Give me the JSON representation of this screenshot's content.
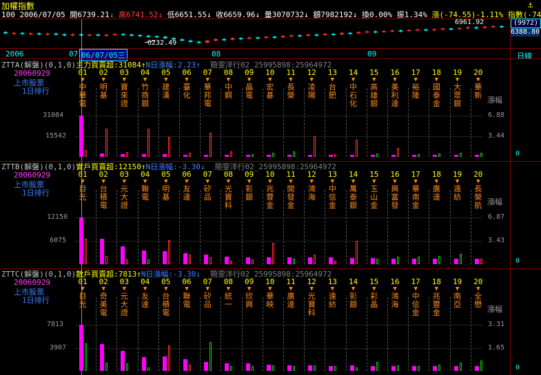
{
  "window": {
    "title": "加權指數",
    "close_glyph": "⚓"
  },
  "summary": {
    "code": "100",
    "date": "2006/07/05",
    "open_label": "開",
    "open": "6739.21",
    "open_arrow": "↓",
    "high_label": "高",
    "high": "6741.52",
    "high_arrow": "↓",
    "low_label": "低",
    "low": "6651.55",
    "low_arrow": "↓",
    "close_label": "收",
    "close": "6659.96",
    "close_arrow": "↓",
    "vol_label": "量",
    "vol": "3070732",
    "vol_arrow": "↓",
    "amount_label": "額",
    "amount": "7982192",
    "amount_arrow": "↓",
    "turn_label": "換",
    "turn": "0.00%",
    "amp_label": "振",
    "amp": "1.34%",
    "chg_label": "漲",
    "chg": "(-74.55)-1.11%",
    "idx_label": "指數",
    "idx": "(-74."
  },
  "mini_chart": {
    "hi_label": "6961.92",
    "lo_label": "6232.49",
    "scale_top": "(9972)",
    "scale_val": "6388.80",
    "candles": [
      {
        "o": 0.55,
        "c": 0.5
      },
      {
        "o": 0.5,
        "c": 0.52
      },
      {
        "o": 0.52,
        "c": 0.48
      },
      {
        "o": 0.48,
        "c": 0.5
      },
      {
        "o": 0.5,
        "c": 0.47
      },
      {
        "o": 0.47,
        "c": 0.49
      },
      {
        "o": 0.49,
        "c": 0.46
      },
      {
        "o": 0.46,
        "c": 0.44
      },
      {
        "o": 0.44,
        "c": 0.46
      },
      {
        "o": 0.46,
        "c": 0.43
      },
      {
        "o": 0.43,
        "c": 0.45
      },
      {
        "o": 0.45,
        "c": 0.42
      },
      {
        "o": 0.42,
        "c": 0.44
      },
      {
        "o": 0.44,
        "c": 0.47
      },
      {
        "o": 0.47,
        "c": 0.45
      },
      {
        "o": 0.45,
        "c": 0.43
      },
      {
        "o": 0.43,
        "c": 0.4
      },
      {
        "o": 0.4,
        "c": 0.38
      },
      {
        "o": 0.38,
        "c": 0.36
      },
      {
        "o": 0.36,
        "c": 0.3
      },
      {
        "o": 0.3,
        "c": 0.25
      },
      {
        "o": 0.25,
        "c": 0.2
      },
      {
        "o": 0.2,
        "c": 0.15
      },
      {
        "o": 0.15,
        "c": 0.12
      },
      {
        "o": 0.12,
        "c": 0.2
      },
      {
        "o": 0.2,
        "c": 0.26
      },
      {
        "o": 0.26,
        "c": 0.24
      },
      {
        "o": 0.24,
        "c": 0.3
      },
      {
        "o": 0.3,
        "c": 0.28
      },
      {
        "o": 0.28,
        "c": 0.33
      },
      {
        "o": 0.33,
        "c": 0.31
      },
      {
        "o": 0.31,
        "c": 0.36
      },
      {
        "o": 0.36,
        "c": 0.34
      },
      {
        "o": 0.34,
        "c": 0.39
      },
      {
        "o": 0.39,
        "c": 0.42
      },
      {
        "o": 0.42,
        "c": 0.4
      },
      {
        "o": 0.4,
        "c": 0.45
      },
      {
        "o": 0.45,
        "c": 0.43
      },
      {
        "o": 0.43,
        "c": 0.48
      },
      {
        "o": 0.48,
        "c": 0.46
      },
      {
        "o": 0.46,
        "c": 0.52
      },
      {
        "o": 0.52,
        "c": 0.5
      },
      {
        "o": 0.5,
        "c": 0.55
      },
      {
        "o": 0.55,
        "c": 0.58
      },
      {
        "o": 0.58,
        "c": 0.56
      },
      {
        "o": 0.56,
        "c": 0.6
      },
      {
        "o": 0.6,
        "c": 0.62
      },
      {
        "o": 0.62,
        "c": 0.6
      },
      {
        "o": 0.6,
        "c": 0.64
      },
      {
        "o": 0.64,
        "c": 0.66
      },
      {
        "o": 0.66,
        "c": 0.63
      },
      {
        "o": 0.63,
        "c": 0.67
      },
      {
        "o": 0.67,
        "c": 0.7
      },
      {
        "o": 0.7,
        "c": 0.68
      },
      {
        "o": 0.68,
        "c": 0.72
      },
      {
        "o": 0.72,
        "c": 0.75
      },
      {
        "o": 0.75,
        "c": 0.73
      },
      {
        "o": 0.73,
        "c": 0.78
      },
      {
        "o": 0.78,
        "c": 0.8
      },
      {
        "o": 0.8,
        "c": 0.77
      }
    ]
  },
  "timeline": {
    "year": "2006",
    "m1": "07",
    "cursor_date": "06/07/05",
    "cursor_weekday": "三",
    "m2": "08",
    "m3": "09",
    "mode": "日線"
  },
  "panels": [
    {
      "id": "ZTTA",
      "prefix": "ZTTA(解盤)(0,1,0)",
      "metric_label": "主力買賣超:",
      "metric_value": "31084",
      "metric_arrow": "↑",
      "nday_label": "N日漲幅:",
      "nday_value": "2.23",
      "nday_arrow": "↑",
      "source": "簡雯洋行02_25995898:25964972",
      "date": "20060929",
      "l2": "上市股票",
      "l3": "1日排行",
      "ymax": "31084",
      "ymid": "15542",
      "rmax": "6.88",
      "rmid": "3.44",
      "rzero": "0",
      "rtitle": "漲幅",
      "stocks": [
        "中華電",
        "明基",
        "寶來證",
        "竹商銀",
        "建漢",
        "臺化",
        "華邦電",
        "中鋼",
        "晶電",
        "宏碁",
        "長榮",
        "凌陽",
        "台肥",
        "中石化",
        "高雄銀",
        "美利達",
        "裕隆",
        "國泰金",
        "大眾銀",
        "華新"
      ],
      "mag": [
        1.0,
        0.08,
        0.06,
        0.07,
        0.06,
        0.05,
        0.04,
        0.05,
        0.03,
        0.03,
        0.03,
        0.03,
        0.02,
        0.02,
        0.02,
        0.02,
        0.02,
        0.02,
        0.02,
        0.02
      ],
      "rise": [
        {
          "v": 0.16,
          "c": "red"
        },
        {
          "v": 0.68,
          "c": "red"
        },
        {
          "v": 0.12,
          "c": "red"
        },
        {
          "v": 0.68,
          "c": "red"
        },
        {
          "v": 0.48,
          "c": "red"
        },
        {
          "v": 0.1,
          "c": "red"
        },
        {
          "v": 0.58,
          "c": "red"
        },
        {
          "v": 0.14,
          "c": "red"
        },
        {
          "v": 0.06,
          "c": "green"
        },
        {
          "v": 0.1,
          "c": "green"
        },
        {
          "v": 0.14,
          "c": "green"
        },
        {
          "v": 0.5,
          "c": "red"
        },
        {
          "v": 0.06,
          "c": "red"
        },
        {
          "v": 0.42,
          "c": "red"
        },
        {
          "v": 0.08,
          "c": "green"
        },
        {
          "v": 0.22,
          "c": "red"
        },
        {
          "v": 0.06,
          "c": "green"
        },
        {
          "v": 0.08,
          "c": "green"
        },
        {
          "v": 0.1,
          "c": "green"
        },
        {
          "v": 0.1,
          "c": "green"
        }
      ]
    },
    {
      "id": "ZTTB",
      "prefix": "ZTTB(解盤)(0,1,0)",
      "metric_label": "實戶買賣超:",
      "metric_value": "12150",
      "metric_arrow": "↑",
      "nday_label": "N日漲幅:",
      "nday_value": "-3.30",
      "nday_arrow": "↓",
      "source": "簡雯洋行02_25995898:25964972",
      "date": "20060929",
      "l2": "上市股票",
      "l3": "1日排行",
      "ymax": "12150",
      "ymid": "6075",
      "rmax": "6.87",
      "rmid": "3.43",
      "rzero": "0",
      "rtitle": "漲幅",
      "stocks": [
        "目光",
        "台積電",
        "元大證",
        "聯電",
        "明基",
        "友達",
        "矽品",
        "光寶科",
        "彰銀",
        "兆豐金",
        "開發金",
        "鴻海",
        "中信金",
        "萬泰銀",
        "玉山金",
        "興富發",
        "華南金",
        "廣達",
        "遠紡",
        "長榮航"
      ],
      "mag": [
        1.0,
        0.54,
        0.38,
        0.3,
        0.28,
        0.24,
        0.2,
        0.16,
        0.15,
        0.14,
        0.14,
        0.14,
        0.14,
        0.13,
        0.13,
        0.12,
        0.12,
        0.12,
        0.12,
        0.12
      ],
      "rise": [
        {
          "v": 0.55,
          "c": "red"
        },
        {
          "v": 0.18,
          "c": "red"
        },
        {
          "v": 0.1,
          "c": "red"
        },
        {
          "v": 0.1,
          "c": "green"
        },
        {
          "v": 0.52,
          "c": "red"
        },
        {
          "v": 0.2,
          "c": "red"
        },
        {
          "v": 0.14,
          "c": "red"
        },
        {
          "v": 0.08,
          "c": "red"
        },
        {
          "v": 0.1,
          "c": "red"
        },
        {
          "v": 0.46,
          "c": "red"
        },
        {
          "v": 0.12,
          "c": "green"
        },
        {
          "v": 0.2,
          "c": "red"
        },
        {
          "v": 0.08,
          "c": "red"
        },
        {
          "v": 0.5,
          "c": "red"
        },
        {
          "v": 0.12,
          "c": "green"
        },
        {
          "v": 0.16,
          "c": "green"
        },
        {
          "v": 0.16,
          "c": "green"
        },
        {
          "v": 0.18,
          "c": "green"
        },
        {
          "v": 0.22,
          "c": "green"
        },
        {
          "v": 0.12,
          "c": "red"
        }
      ]
    },
    {
      "id": "ZTTC",
      "prefix": "ZTTC(解盤)(0,1,0)",
      "metric_label": "散戶買賣超:",
      "metric_value": "7813",
      "metric_arrow": "↑",
      "nday_label": "N日漲幅:",
      "nday_value": "-3.30",
      "nday_arrow": "↓",
      "source": "簡雯洋行02_25995898:25964972",
      "date": "20060929",
      "l2": "上市股票",
      "l3": "1日排行",
      "ymax": "7813",
      "ymid": "3907",
      "rmax": "3.31",
      "rmid": "1.65",
      "rzero": "0",
      "rtitle": "漲幅",
      "stocks": [
        "目光",
        "奇美電",
        "元大證",
        "友達",
        "台積電",
        "聯電",
        "矽品",
        "統一",
        "欣興",
        "華映",
        "廣達",
        "光寶科",
        "遠紡",
        "彰銀",
        "彩晶",
        "鴻海",
        "中信金",
        "兆豐金",
        "南亞",
        "全懋"
      ],
      "mag": [
        1.0,
        0.58,
        0.44,
        0.3,
        0.32,
        0.25,
        0.2,
        0.17,
        0.16,
        0.14,
        0.12,
        0.12,
        0.11,
        0.12,
        0.11,
        0.1,
        0.1,
        0.1,
        0.1,
        0.1
      ],
      "rise": [
        {
          "v": 0.6,
          "c": "green"
        },
        {
          "v": 0.18,
          "c": "green"
        },
        {
          "v": 0.16,
          "c": "green"
        },
        {
          "v": 0.08,
          "c": "green"
        },
        {
          "v": 0.55,
          "c": "red"
        },
        {
          "v": 0.14,
          "c": "red"
        },
        {
          "v": 0.62,
          "c": "green"
        },
        {
          "v": 0.1,
          "c": "green"
        },
        {
          "v": 0.1,
          "c": "green"
        },
        {
          "v": 0.12,
          "c": "green"
        },
        {
          "v": 0.1,
          "c": "green"
        },
        {
          "v": 0.12,
          "c": "green"
        },
        {
          "v": 0.1,
          "c": "green"
        },
        {
          "v": 0.08,
          "c": "green"
        },
        {
          "v": 0.2,
          "c": "green"
        },
        {
          "v": 0.12,
          "c": "green"
        },
        {
          "v": 0.1,
          "c": "green"
        },
        {
          "v": 0.14,
          "c": "green"
        },
        {
          "v": 0.18,
          "c": "green"
        },
        {
          "v": 0.22,
          "c": "green"
        }
      ]
    }
  ],
  "nums": [
    "01",
    "02",
    "03",
    "04",
    "05",
    "06",
    "07",
    "08",
    "09",
    "10",
    "11",
    "12",
    "13",
    "14",
    "15",
    "16",
    "17",
    "18",
    "19",
    "20"
  ]
}
